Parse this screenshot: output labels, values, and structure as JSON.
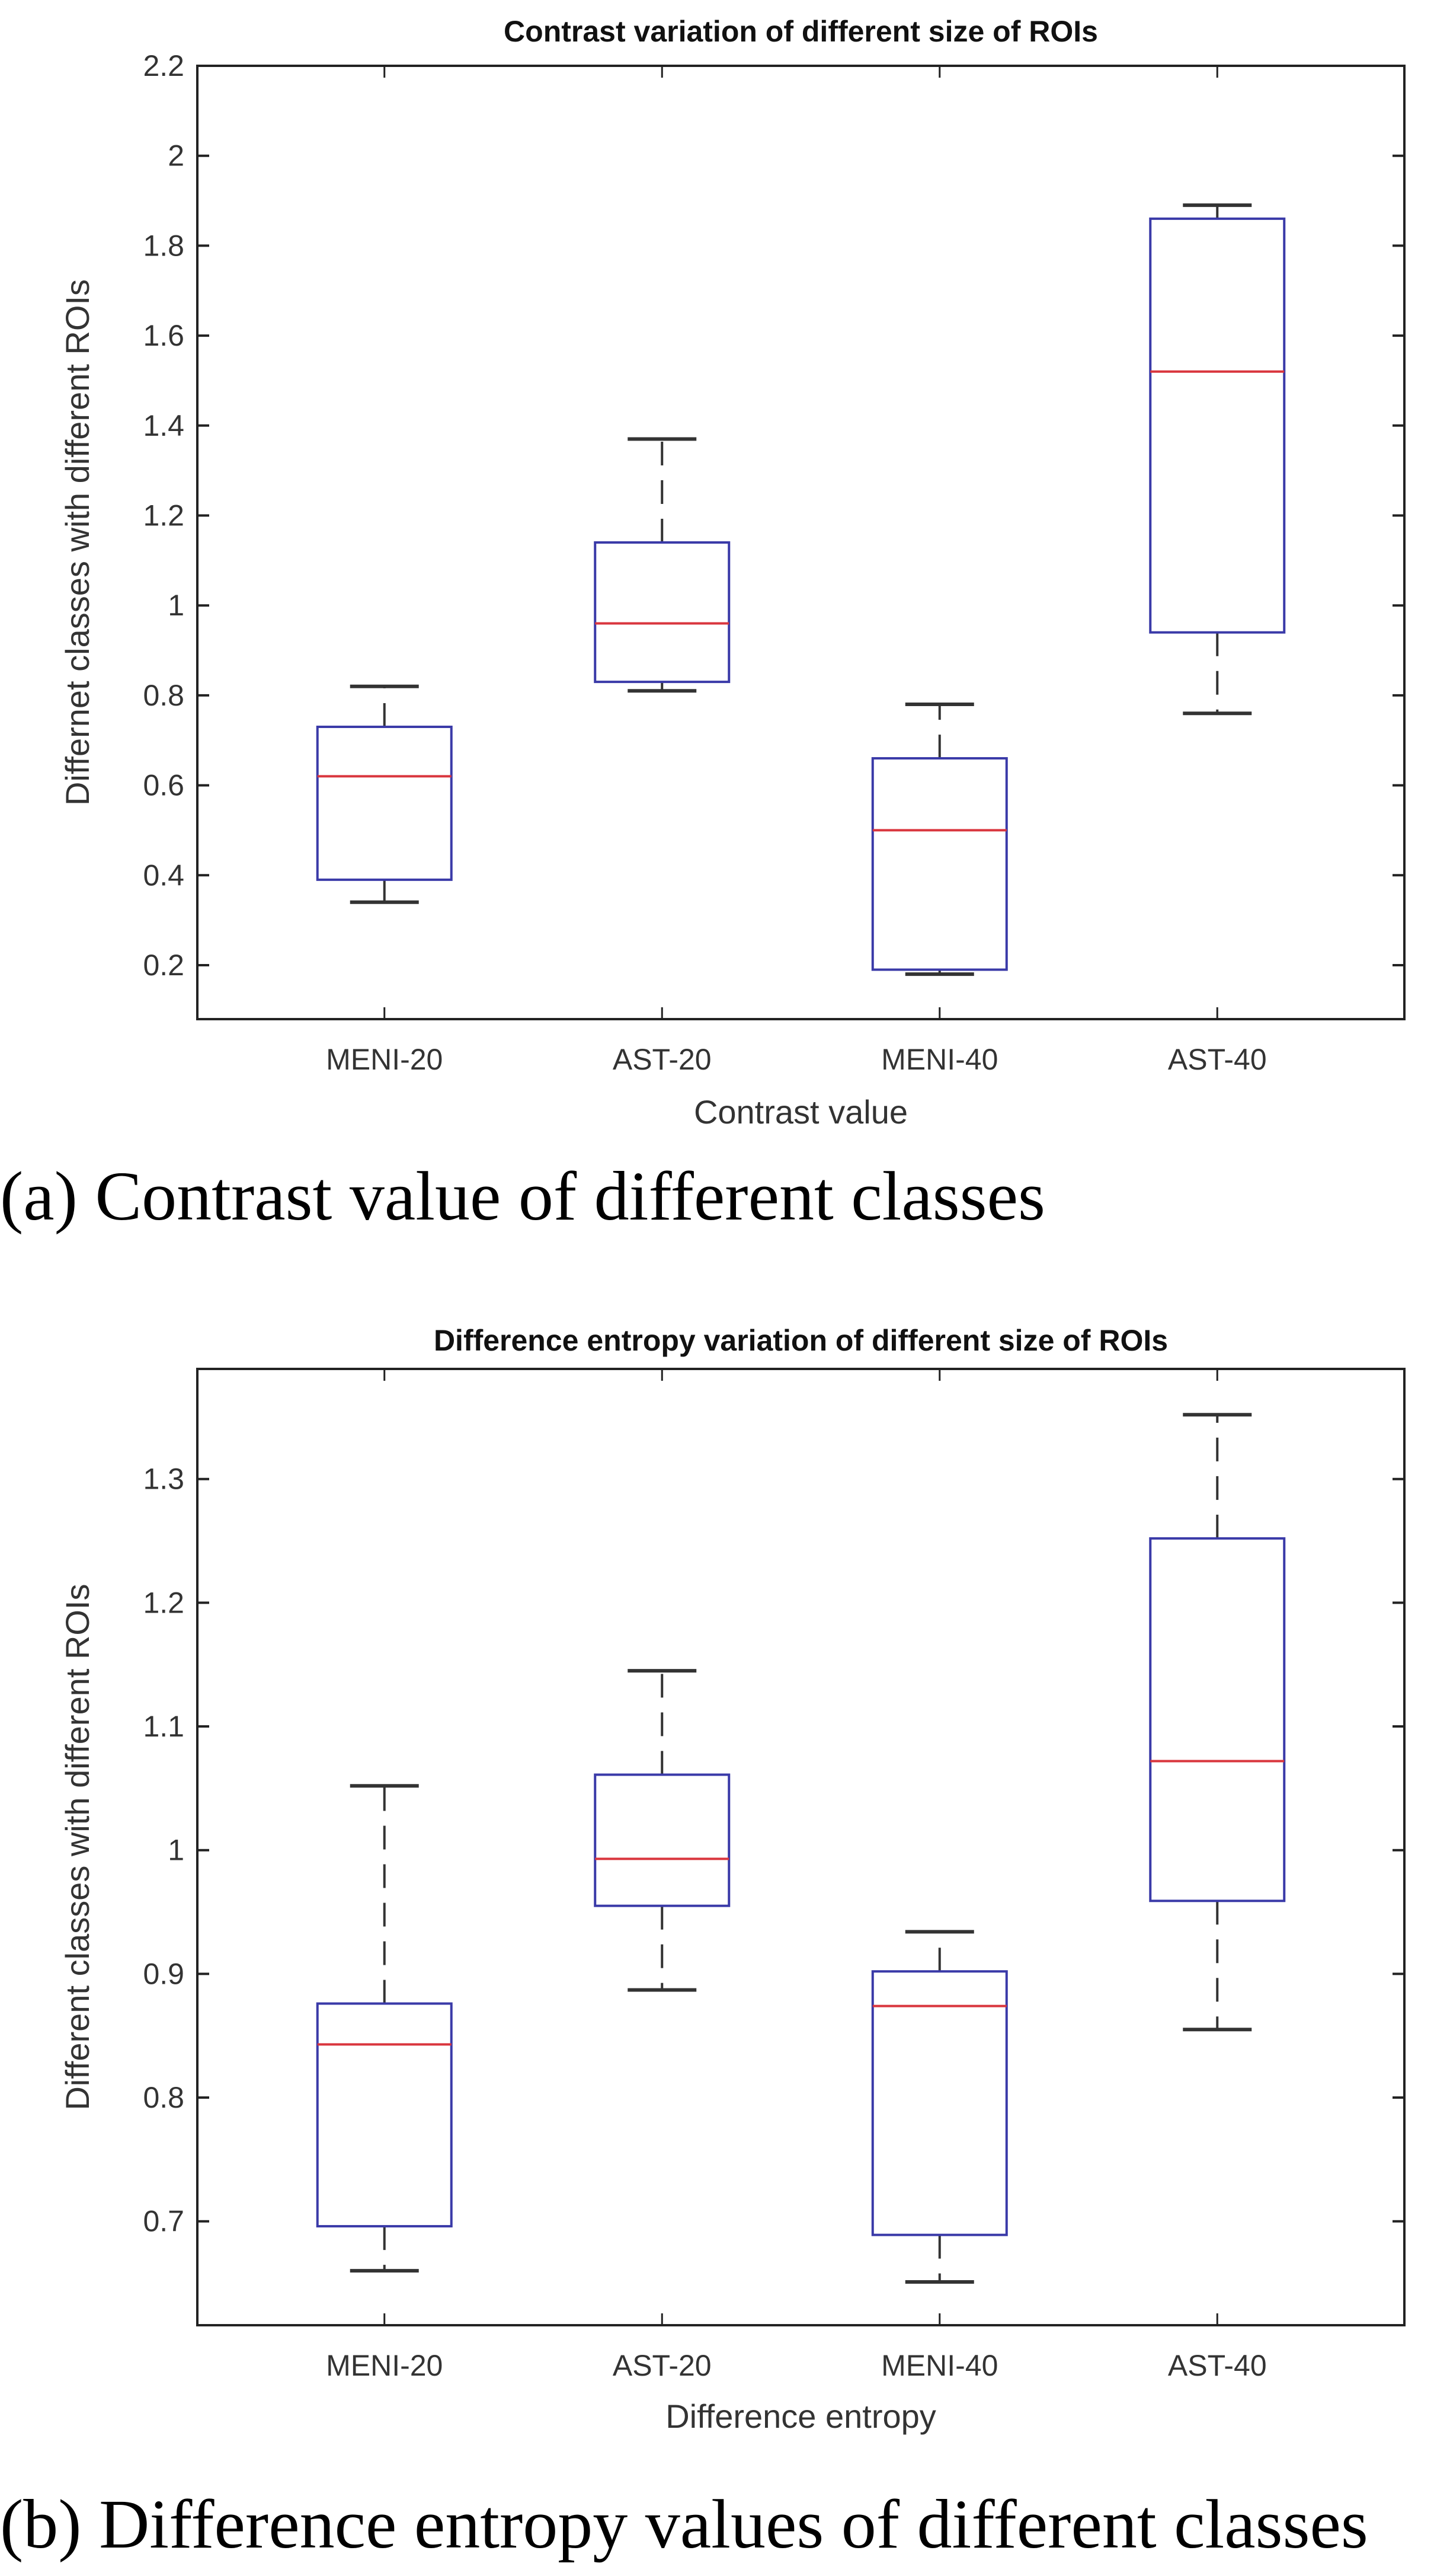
{
  "chart_data": [
    {
      "type": "boxplot",
      "title": "Contrast variation of different  size of ROIs",
      "xlabel": "Contrast value",
      "ylabel": "Differnet classes with different ROIs",
      "categories": [
        "MENI-20",
        "AST-20",
        "MENI-40",
        "AST-40"
      ],
      "yticks": [
        0.2,
        0.4,
        0.6,
        0.8,
        1,
        1.2,
        1.4,
        1.6,
        1.8,
        2,
        2.2
      ],
      "ytick_labels": [
        "0.2",
        "0.4",
        "0.6",
        "0.8",
        "1",
        "1.2",
        "1.4",
        "1.6",
        "1.8",
        "2",
        "2.2"
      ],
      "ylim": [
        0.08,
        2.2
      ],
      "grid": false,
      "boxes": [
        {
          "name": "MENI-20",
          "whisker_low": 0.34,
          "q1": 0.39,
          "median": 0.62,
          "q3": 0.73,
          "whisker_high": 0.82
        },
        {
          "name": "AST-20",
          "whisker_low": 0.81,
          "q1": 0.83,
          "median": 0.96,
          "q3": 1.14,
          "whisker_high": 1.37
        },
        {
          "name": "MENI-40",
          "whisker_low": 0.18,
          "q1": 0.19,
          "median": 0.5,
          "q3": 0.66,
          "whisker_high": 0.78
        },
        {
          "name": "AST-40",
          "whisker_low": 0.76,
          "q1": 0.94,
          "median": 1.52,
          "q3": 1.86,
          "whisker_high": 1.89
        }
      ],
      "caption": "(a) Contrast value of different classes"
    },
    {
      "type": "boxplot",
      "title": "Difference entropy variation of different  size of ROIs",
      "xlabel": "Difference entropy",
      "ylabel": "Different classes with different ROIs",
      "categories": [
        "MENI-20",
        "AST-20",
        "MENI-40",
        "AST-40"
      ],
      "yticks": [
        0.7,
        0.8,
        0.9,
        1,
        1.1,
        1.2,
        1.3
      ],
      "ytick_labels": [
        "0.7",
        "0.8",
        "0.9",
        "1",
        "1.1",
        "1.2",
        "1.3"
      ],
      "ylim": [
        0.616,
        1.389
      ],
      "grid": false,
      "boxes": [
        {
          "name": "MENI-20",
          "whisker_low": 0.66,
          "q1": 0.696,
          "median": 0.843,
          "q3": 0.876,
          "whisker_high": 1.052
        },
        {
          "name": "AST-20",
          "whisker_low": 0.887,
          "q1": 0.955,
          "median": 0.993,
          "q3": 1.061,
          "whisker_high": 1.145
        },
        {
          "name": "MENI-40",
          "whisker_low": 0.651,
          "q1": 0.689,
          "median": 0.874,
          "q3": 0.902,
          "whisker_high": 0.934
        },
        {
          "name": "AST-40",
          "whisker_low": 0.855,
          "q1": 0.959,
          "median": 1.072,
          "q3": 1.252,
          "whisker_high": 1.352
        }
      ],
      "caption": "(b) Difference entropy values of different classes"
    }
  ],
  "colors": {
    "box": "#3a3aa8",
    "median": "#d9363e",
    "whisker": "#333333",
    "axis": "#222222"
  }
}
